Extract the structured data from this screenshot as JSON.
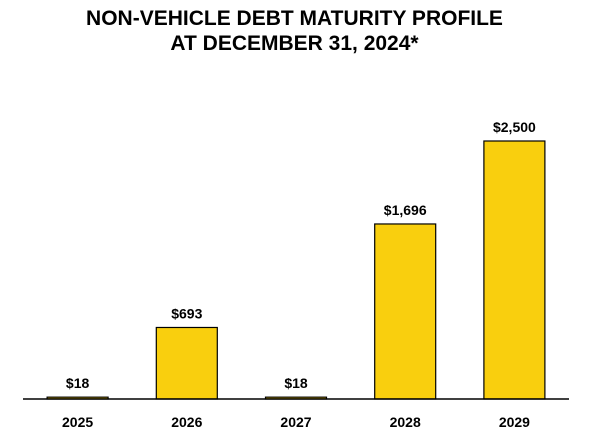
{
  "chart_data": {
    "type": "bar",
    "title_lines": [
      "NON-VEHICLE DEBT MATURITY PROFILE",
      "AT DECEMBER 31, 2024*"
    ],
    "categories": [
      "2025",
      "2026",
      "2027",
      "2028",
      "2029"
    ],
    "values": [
      18,
      693,
      18,
      1696,
      2500
    ],
    "data_labels": [
      "$18",
      "$693",
      "$18",
      "$1,696",
      "$2,500"
    ],
    "xlabel": "",
    "ylabel": "",
    "ylim": [
      0,
      2500
    ],
    "grid": false,
    "legend": "none",
    "colors": {
      "bar_fill": "#F9CF0E",
      "bar_stroke": "#000000",
      "axis": "#000000"
    }
  }
}
